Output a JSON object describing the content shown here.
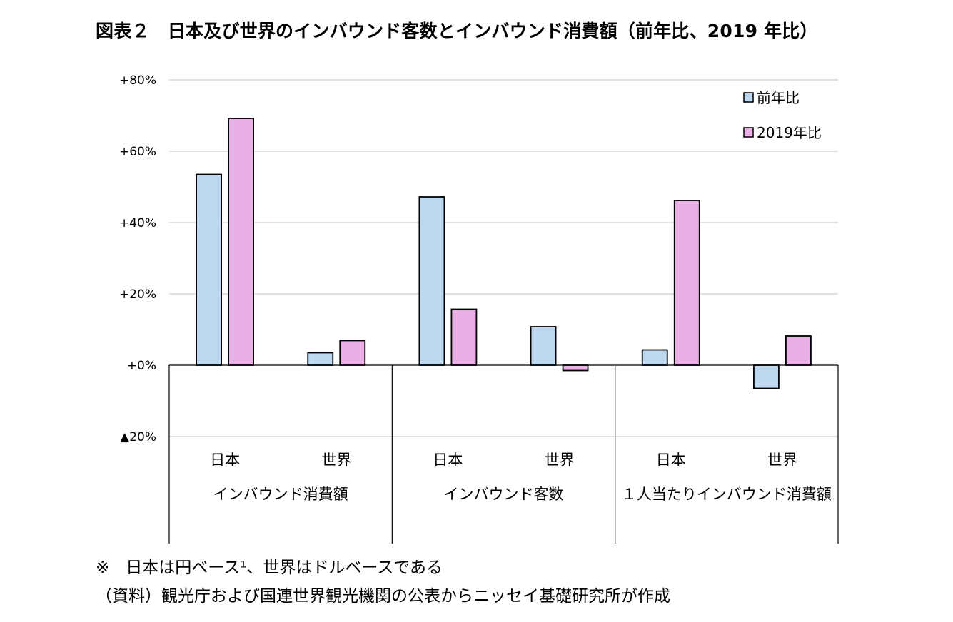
{
  "title": "図表２　日本及び世界のインバウンド客数とインバウンド消費額（前年比、2019 年比）",
  "footnotes": {
    "note": "※　日本は円ベース¹、世界はドルベースである",
    "source": "（資料）観光庁および国連世界観光機関の公表からニッセイ基礎研究所が作成"
  },
  "colors": {
    "series_yoy": "#bdd7ee",
    "series_2019": "#e9b0e6",
    "gridline": "#d9d9d9",
    "axis": "#000000"
  },
  "chart_data": {
    "type": "bar",
    "groups": [
      "インバウンド消費額",
      "インバウンド客数",
      "１人当たりインバウンド消費額"
    ],
    "categories": [
      "日本",
      "世界",
      "日本",
      "世界",
      "日本",
      "世界"
    ],
    "series": [
      {
        "name": "前年比",
        "values": [
          53.5,
          3.5,
          47.2,
          10.8,
          4.3,
          -6.5
        ]
      },
      {
        "name": "2019年比",
        "values": [
          69.2,
          6.9,
          15.7,
          -1.5,
          46.2,
          8.2
        ]
      }
    ],
    "ylim": [
      -20,
      80
    ],
    "yticks": [
      80,
      60,
      40,
      20,
      0,
      -20
    ],
    "ytick_labels": [
      "+80%",
      "+60%",
      "+40%",
      "+20%",
      "+0%",
      "▲20%"
    ],
    "grid": true,
    "legend_position": "top-right",
    "xlabel": "",
    "ylabel": ""
  }
}
